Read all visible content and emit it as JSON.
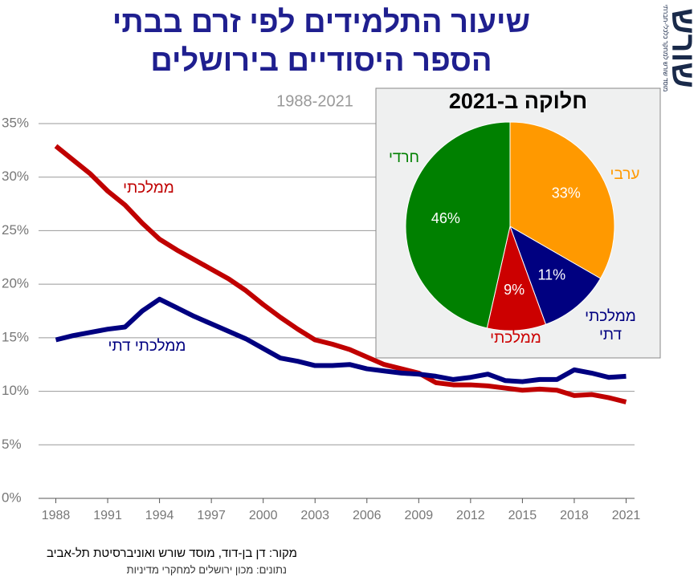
{
  "chart_data": [
    {
      "type": "line",
      "title": [
        "שיעור התלמידים לפי זרם בבתי",
        "הספר היסודיים בירושלים"
      ],
      "subtitle": "1988-2021",
      "x": [
        1988,
        1989,
        1990,
        1991,
        1992,
        1993,
        1994,
        1995,
        1996,
        1997,
        1998,
        1999,
        2000,
        2001,
        2002,
        2003,
        2004,
        2005,
        2006,
        2007,
        2008,
        2009,
        2010,
        2011,
        2012,
        2013,
        2014,
        2015,
        2016,
        2017,
        2018,
        2019,
        2020,
        2021
      ],
      "series": [
        {
          "name": "ממלכתי",
          "color": "#c00000",
          "values": [
            32.9,
            31.6,
            30.3,
            28.7,
            27.4,
            25.7,
            24.2,
            23.2,
            22.3,
            21.4,
            20.5,
            19.4,
            18.1,
            16.9,
            15.8,
            14.8,
            14.4,
            13.9,
            13.2,
            12.5,
            12.1,
            11.7,
            10.8,
            10.6,
            10.6,
            10.5,
            10.3,
            10.1,
            10.2,
            10.1,
            9.6,
            9.7,
            9.4,
            9.0
          ]
        },
        {
          "name": "ממלכתי דתי",
          "color": "#000080",
          "values": [
            14.8,
            15.2,
            15.5,
            15.8,
            16.0,
            17.5,
            18.6,
            17.8,
            17.0,
            16.3,
            15.6,
            14.9,
            14.0,
            13.1,
            12.8,
            12.4,
            12.4,
            12.5,
            12.1,
            11.9,
            11.7,
            11.6,
            11.4,
            11.1,
            11.3,
            11.6,
            11.0,
            10.9,
            11.1,
            11.1,
            12.0,
            11.7,
            11.3,
            11.4
          ]
        }
      ],
      "xlim": [
        1987,
        2022
      ],
      "xticks": [
        1988,
        1991,
        1994,
        1997,
        2000,
        2003,
        2006,
        2009,
        2012,
        2015,
        2018,
        2021
      ],
      "ylim": [
        0,
        35
      ],
      "yticks": [
        {
          "value": 0,
          "label": "0%"
        },
        {
          "value": 5,
          "label": "5%"
        },
        {
          "value": 10,
          "label": "10%"
        },
        {
          "value": 15,
          "label": "15%"
        },
        {
          "value": 20,
          "label": "20%"
        },
        {
          "value": 25,
          "label": "25%"
        },
        {
          "value": 30,
          "label": "30%"
        },
        {
          "value": 35,
          "label": "35%"
        }
      ],
      "grid": true
    },
    {
      "type": "pie",
      "title": "חלוקה ב-2021",
      "categories": [
        "ערבי",
        "ממלכתי דתי",
        "ממלכתי",
        "חרדי"
      ],
      "values": [
        33,
        11,
        9,
        46
      ],
      "value_labels": [
        "33%",
        "11%",
        "9%",
        "46%"
      ],
      "colors": [
        "#ff9900",
        "#000080",
        "#cc0000",
        "#008000"
      ]
    }
  ],
  "source": "מקור:  דן בן-דוד, מוסד שורש ואוניברסיטת תל-אביב",
  "data_note": "נתונים: מכון ירושלים למחקרי מדיניות",
  "logo": "שורש",
  "logo_caption": "מוסד שורש למחקר כלכלי-חברתי"
}
